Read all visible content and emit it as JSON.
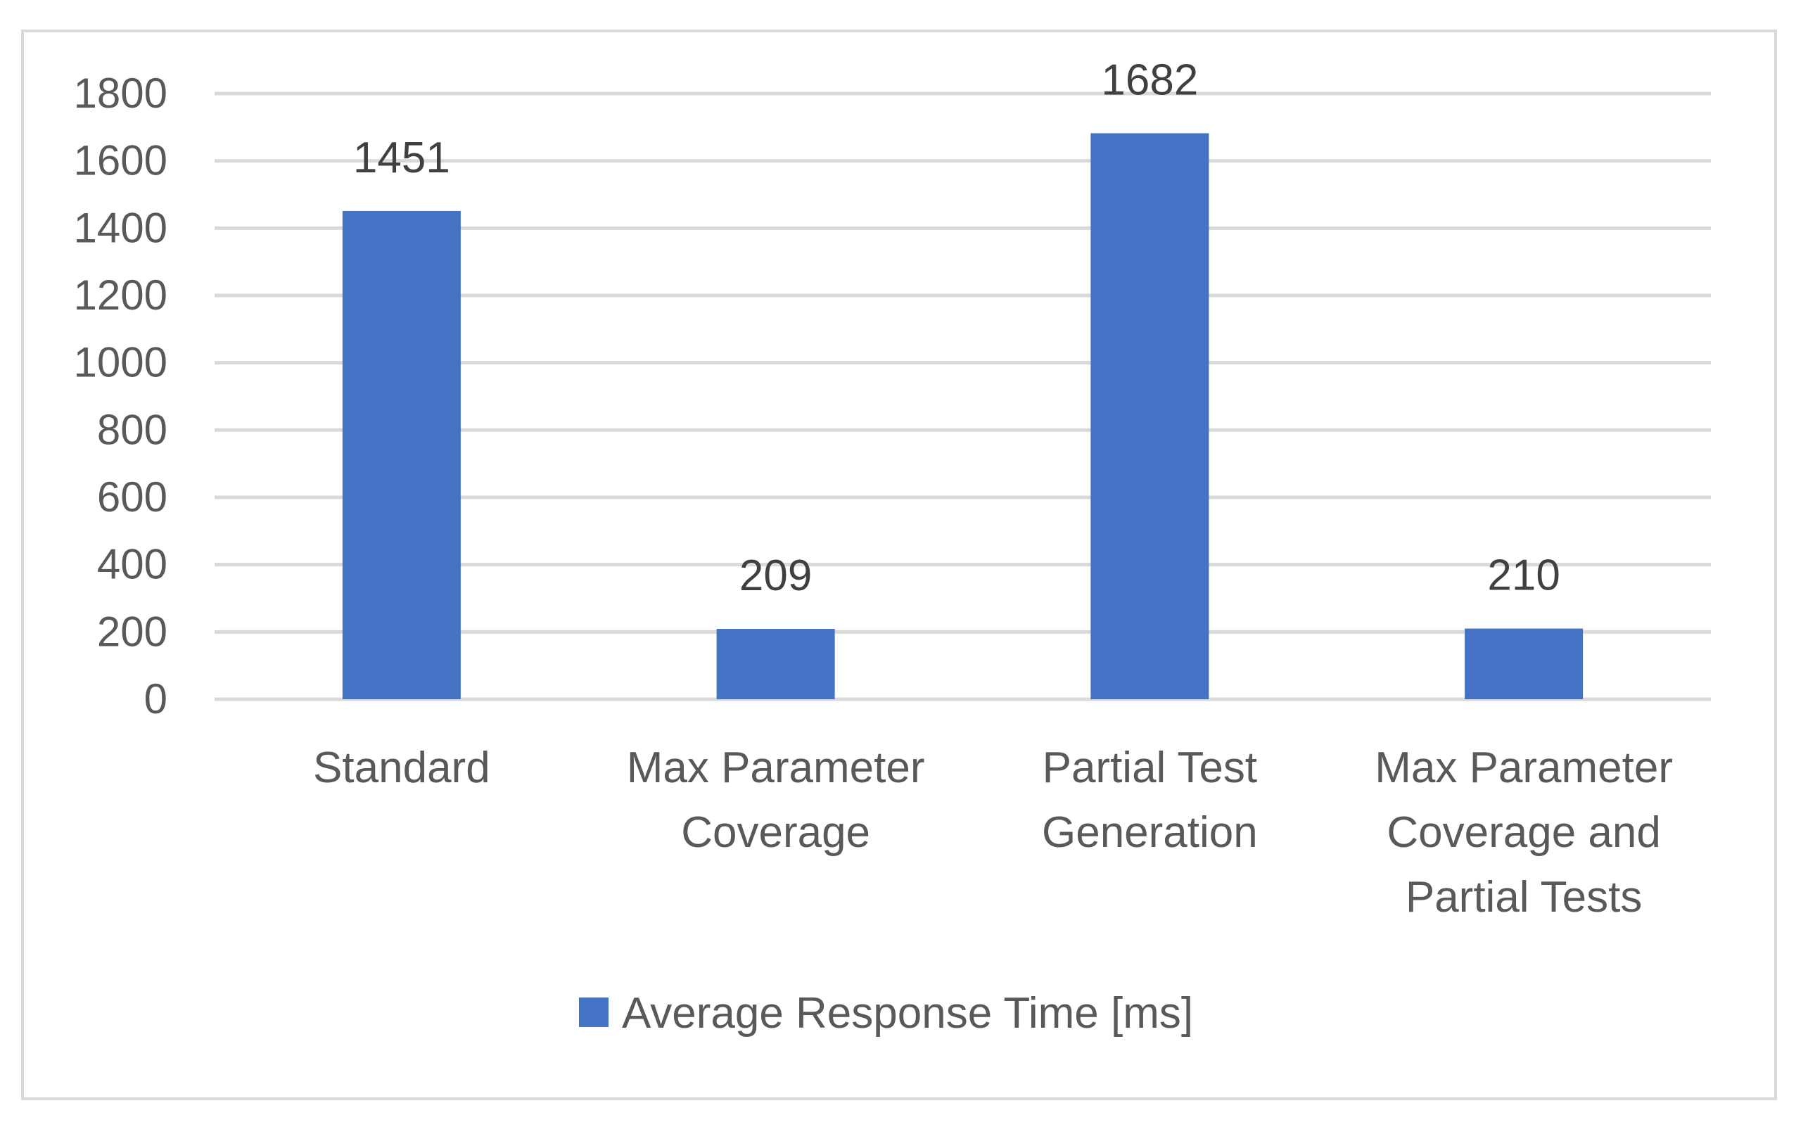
{
  "chart_data": {
    "type": "bar",
    "title": "",
    "xlabel": "",
    "ylabel": "",
    "categories": [
      [
        "Standard"
      ],
      [
        "Max Parameter",
        "Coverage"
      ],
      [
        "Partial Test",
        "Generation"
      ],
      [
        "Max Parameter",
        "Coverage and",
        "Partial Tests"
      ]
    ],
    "series": [
      {
        "name": "Average Response Time [ms]",
        "values": [
          1451,
          209,
          1682,
          210
        ],
        "color": "#4472c4"
      }
    ],
    "ylim": [
      0,
      1800
    ],
    "yticks": [
      0,
      200,
      400,
      600,
      800,
      1000,
      1200,
      1400,
      1600,
      1800
    ],
    "grid": true,
    "grid_color": "#d9d9d9",
    "legend_position": "bottom",
    "data_labels": true
  }
}
